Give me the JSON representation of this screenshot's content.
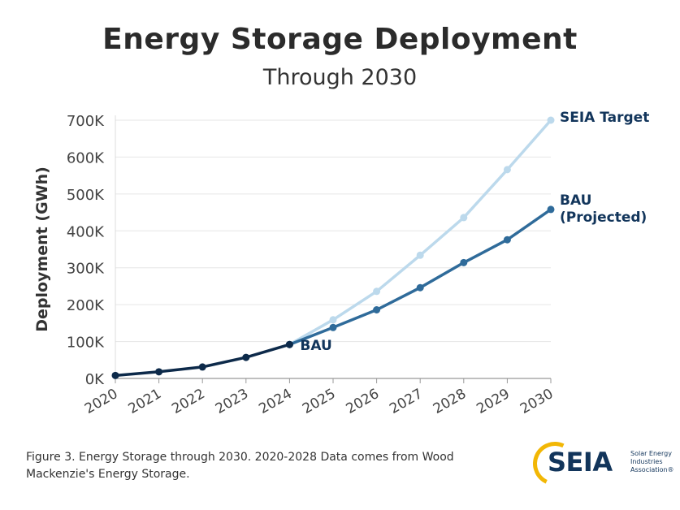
{
  "chart_data": {
    "type": "line",
    "title": "Energy Storage Deployment",
    "subtitle": "Through 2030",
    "ylabel": "Deployment (GWh)",
    "xlabel": "",
    "categories": [
      "2020",
      "2021",
      "2022",
      "2023",
      "2024",
      "2025",
      "2026",
      "2027",
      "2028",
      "2029",
      "2030"
    ],
    "y_ticks": [
      "0K",
      "100K",
      "200K",
      "300K",
      "400K",
      "500K",
      "600K",
      "700K"
    ],
    "ylim": [
      0,
      700000
    ],
    "grid": true,
    "series": [
      {
        "name": "BAU",
        "label": "BAU",
        "color": "#0d2a4a",
        "x": [
          "2020",
          "2021",
          "2022",
          "2023",
          "2024"
        ],
        "values": [
          8000,
          18000,
          31000,
          57000,
          92000
        ]
      },
      {
        "name": "BAU (Projected)",
        "label_line1": "BAU",
        "label_line2": "(Projected)",
        "color": "#2f6b9a",
        "x": [
          "2024",
          "2025",
          "2026",
          "2027",
          "2028",
          "2029",
          "2030"
        ],
        "values": [
          92000,
          138000,
          186000,
          246000,
          314000,
          376000,
          458000
        ]
      },
      {
        "name": "SEIA Target",
        "label": "SEIA Target",
        "color": "#bcd9ec",
        "x": [
          "2024",
          "2025",
          "2026",
          "2027",
          "2028",
          "2029",
          "2030"
        ],
        "values": [
          92000,
          159000,
          236000,
          334000,
          436000,
          566000,
          700000
        ]
      }
    ]
  },
  "caption": {
    "line1": "Figure 3. Energy Storage through 2030. 2020-2028 Data comes from Wood",
    "line2": "Mackenzie's Energy Storage."
  },
  "logo": {
    "word": "SEIA",
    "tag1": "Solar Energy",
    "tag2": "Industries",
    "tag3": "Association®"
  }
}
